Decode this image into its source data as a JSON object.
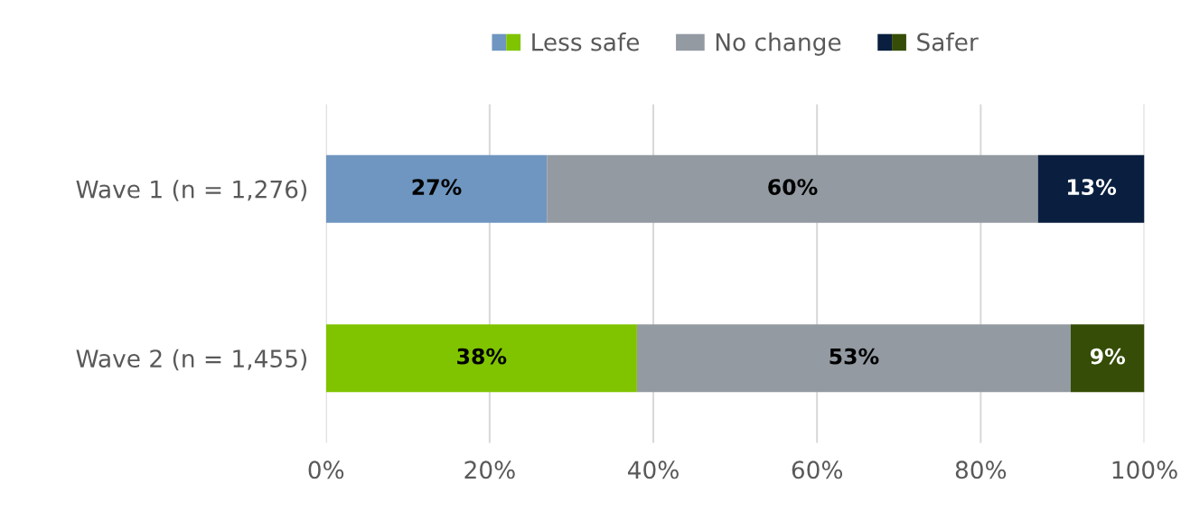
{
  "chart_data": {
    "type": "bar",
    "orientation": "horizontal",
    "stacked": true,
    "categories": [
      "Wave 1 (n = 1,276)",
      "Wave 2 (n = 1,455)"
    ],
    "series": [
      {
        "name": "Less safe",
        "colors": [
          "#6f96c0",
          "#80c400"
        ],
        "values": [
          27,
          38
        ],
        "value_labels": [
          "27%",
          "38%"
        ]
      },
      {
        "name": "No change",
        "colors": [
          "#939aa2",
          "#939aa2"
        ],
        "values": [
          60,
          53
        ],
        "value_labels": [
          "60%",
          "53%"
        ]
      },
      {
        "name": "Safer",
        "colors": [
          "#0a1f3f",
          "#354d06"
        ],
        "values": [
          13,
          9
        ],
        "value_labels": [
          "13%",
          "9%"
        ]
      }
    ],
    "xlim": [
      0,
      100
    ],
    "xticks": [
      {
        "value": 0,
        "label": "0%"
      },
      {
        "value": 20,
        "label": "20%"
      },
      {
        "value": 40,
        "label": "40%"
      },
      {
        "value": 60,
        "label": "60%"
      },
      {
        "value": 80,
        "label": "80%"
      },
      {
        "value": 100,
        "label": "100%"
      }
    ],
    "grid": "x",
    "legend": "top"
  }
}
